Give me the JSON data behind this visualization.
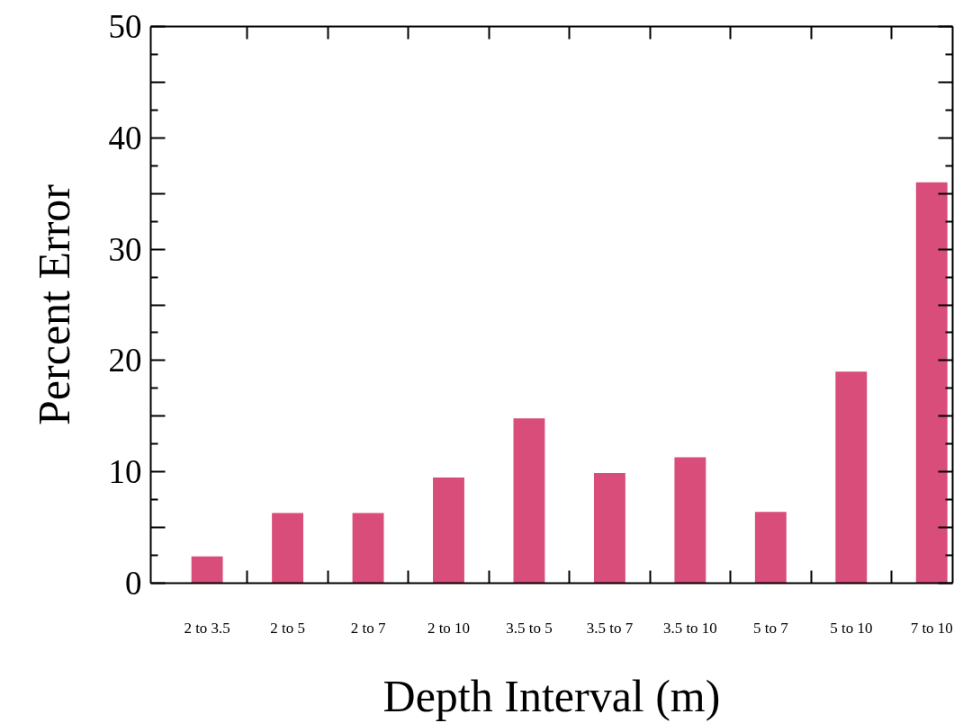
{
  "chart_data": {
    "type": "bar",
    "xlabel": "Depth Interval (m)",
    "ylabel": "Percent Error",
    "categories": [
      "2 to 3.5",
      "2 to 5",
      "2 to 7",
      "2 to 10",
      "3.5 to 5",
      "3.5 to 7",
      "3.5 to 10",
      "5 to 7",
      "5 to 10",
      "7 to 10"
    ],
    "values": [
      2.4,
      6.3,
      6.3,
      9.5,
      14.8,
      9.9,
      11.3,
      6.4,
      19.0,
      36.0
    ],
    "color": "#d84d79",
    "ylim": [
      0,
      50
    ],
    "yticks": [
      0,
      {
        "value": 5,
        "label": null
      },
      10,
      {
        "value": 15,
        "label": null
      },
      20,
      {
        "value": 25,
        "label": null
      },
      30,
      {
        "value": 35,
        "label": null
      },
      40,
      {
        "value": 45,
        "label": null
      },
      50
    ],
    "grid": false
  }
}
